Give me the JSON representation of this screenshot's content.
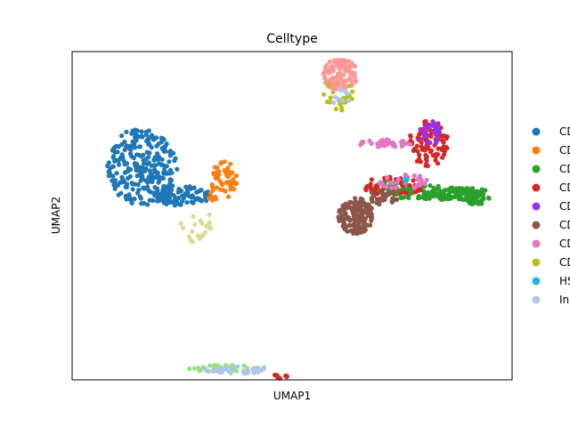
{
  "chart_data": {
    "type": "scatter",
    "title": "Celltype",
    "xlabel": "UMAP1",
    "ylabel": "UMAP2",
    "xlim": [
      0,
      10
    ],
    "ylim": [
      0,
      10
    ],
    "grid": false,
    "ticks": false,
    "legend_position": "right",
    "series": [
      {
        "name": "CD",
        "color": "#1f77b4",
        "clusters": [
          {
            "cx": 1.6,
            "cy": 6.5,
            "rx": 0.8,
            "ry": 1.2,
            "n": 260
          },
          {
            "cx": 2.5,
            "cy": 5.6,
            "rx": 0.7,
            "ry": 0.3,
            "n": 90
          }
        ]
      },
      {
        "name": "CD",
        "color": "#ff7f0e",
        "clusters": [
          {
            "cx": 3.45,
            "cy": 6.1,
            "rx": 0.3,
            "ry": 0.6,
            "n": 50
          },
          {
            "cx": 3.15,
            "cy": 5.55,
            "rx": 0.15,
            "ry": 0.15,
            "n": 6
          }
        ]
      },
      {
        "name": "CD",
        "color": "#2ca02c",
        "clusters": [
          {
            "cx": 8.3,
            "cy": 5.7,
            "rx": 1.2,
            "ry": 0.22,
            "n": 140
          },
          {
            "cx": 9.15,
            "cy": 5.55,
            "rx": 0.35,
            "ry": 0.22,
            "n": 50
          },
          {
            "cx": 7.2,
            "cy": 5.85,
            "rx": 0.55,
            "ry": 0.2,
            "n": 30
          }
        ]
      },
      {
        "name": "CD",
        "color": "#d62728",
        "clusters": [
          {
            "cx": 8.1,
            "cy": 7.2,
            "rx": 0.45,
            "ry": 0.7,
            "n": 95
          },
          {
            "cx": 7.3,
            "cy": 5.9,
            "rx": 0.7,
            "ry": 0.3,
            "n": 40
          },
          {
            "cx": 4.7,
            "cy": 0.1,
            "rx": 0.2,
            "ry": 0.06,
            "n": 10
          }
        ]
      },
      {
        "name": "CD",
        "color": "#9b30ee",
        "clusters": [
          {
            "cx": 8.15,
            "cy": 7.5,
            "rx": 0.25,
            "ry": 0.4,
            "n": 28
          }
        ]
      },
      {
        "name": "CD",
        "color": "#8c564b",
        "clusters": [
          {
            "cx": 6.45,
            "cy": 5.0,
            "rx": 0.4,
            "ry": 0.55,
            "n": 160
          },
          {
            "cx": 7.05,
            "cy": 5.55,
            "rx": 0.35,
            "ry": 0.22,
            "n": 30
          }
        ]
      },
      {
        "name": "CD",
        "color": "#e377c2",
        "clusters": [
          {
            "cx": 7.1,
            "cy": 7.2,
            "rx": 0.6,
            "ry": 0.12,
            "n": 30
          },
          {
            "cx": 7.6,
            "cy": 6.0,
            "rx": 0.6,
            "ry": 0.25,
            "n": 30
          }
        ]
      },
      {
        "name": "CD",
        "color": "#bcbd22",
        "clusters": [
          {
            "cx": 6.05,
            "cy": 8.7,
            "rx": 0.35,
            "ry": 0.55,
            "n": 25
          }
        ]
      },
      {
        "name": "HS",
        "color": "#17becf",
        "clusters": [
          {
            "cx": 7.6,
            "cy": 6.1,
            "rx": 0.08,
            "ry": 0.05,
            "n": 4
          }
        ]
      },
      {
        "name": "In",
        "color": "#aec7e8",
        "clusters": [
          {
            "cx": 3.7,
            "cy": 0.3,
            "rx": 0.7,
            "ry": 0.12,
            "n": 40
          },
          {
            "cx": 6.1,
            "cy": 8.6,
            "rx": 0.2,
            "ry": 0.3,
            "n": 10
          }
        ]
      }
    ],
    "extra_clusters": [
      {
        "color": "#ff9896",
        "cx": 6.1,
        "cy": 9.3,
        "rx": 0.4,
        "ry": 0.5,
        "n": 110
      },
      {
        "color": "#98df8a",
        "cx": 3.5,
        "cy": 0.35,
        "rx": 0.9,
        "ry": 0.1,
        "n": 40
      },
      {
        "color": "#dbdb8d",
        "cx": 2.8,
        "cy": 4.7,
        "rx": 0.4,
        "ry": 0.55,
        "n": 20
      }
    ]
  }
}
